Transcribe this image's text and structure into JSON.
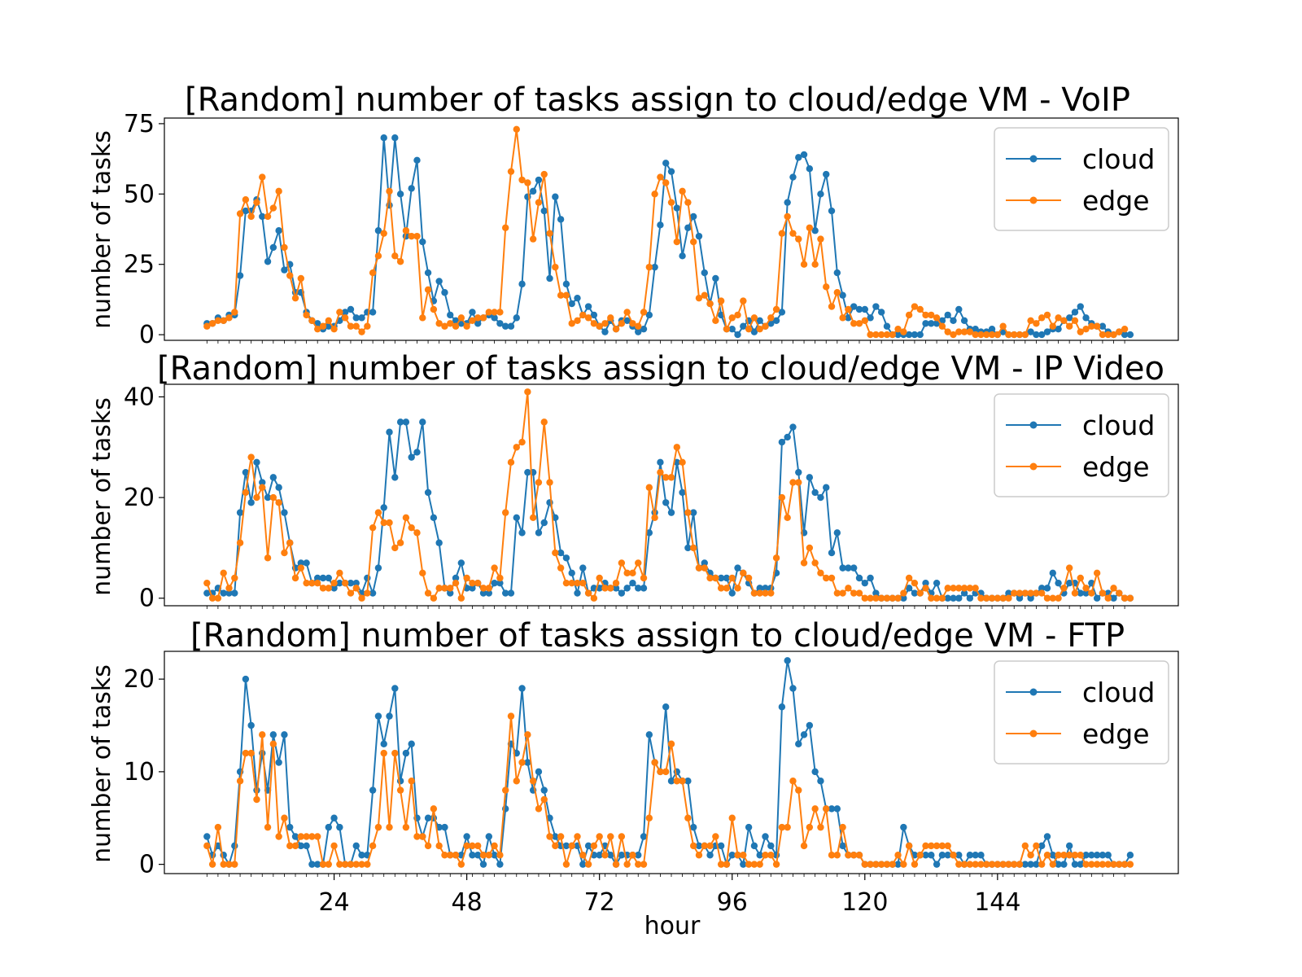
{
  "colors": {
    "cloud": "#1f77b4",
    "edge": "#ff7f0e",
    "axes": "#000000",
    "legend_border": "#cccccc"
  },
  "chart_data": [
    {
      "type": "line",
      "title": "[Random] number of tasks assign to cloud/edge VM - VoIP",
      "xlabel": "",
      "ylabel": "number of tasks",
      "ylim": [
        -2,
        77
      ],
      "yticks": [
        0,
        25,
        50,
        75
      ],
      "legend": {
        "placement": "top-right",
        "entries": [
          "cloud",
          "edge"
        ]
      },
      "grid": false,
      "x": "hours 1..168",
      "series": [
        {
          "name": "cloud",
          "values": [
            4,
            4,
            6,
            5,
            7,
            7,
            21,
            44,
            44,
            48,
            42,
            26,
            31,
            37,
            23,
            25,
            15,
            15,
            8,
            5,
            4,
            2,
            3,
            3,
            5,
            8,
            9,
            6,
            6,
            8,
            8,
            37,
            70,
            46,
            70,
            50,
            35,
            52,
            62,
            33,
            22,
            12,
            19,
            15,
            7,
            5,
            4,
            4,
            8,
            4,
            6,
            7,
            6,
            4,
            3,
            3,
            6,
            18,
            49,
            51,
            55,
            44,
            20,
            49,
            41,
            18,
            11,
            13,
            7,
            10,
            7,
            3,
            1,
            5,
            2,
            5,
            5,
            3,
            1,
            2,
            7,
            24,
            39,
            61,
            58,
            45,
            28,
            38,
            42,
            35,
            22,
            11,
            20,
            7,
            2,
            2,
            0,
            3,
            5,
            1,
            5,
            3,
            4,
            5,
            8,
            47,
            56,
            63,
            64,
            59,
            37,
            50,
            57,
            44,
            22,
            14,
            6,
            10,
            9,
            9,
            6,
            10,
            8,
            3,
            0,
            0,
            0,
            0,
            0,
            0,
            4,
            4,
            4,
            5,
            7,
            5,
            9,
            5,
            2,
            2,
            1,
            1,
            2,
            0,
            1,
            0,
            0,
            0,
            0,
            1,
            0,
            0,
            1,
            2,
            2,
            5,
            6,
            8,
            10,
            6,
            4,
            3,
            3,
            1,
            0,
            1,
            0,
            0
          ]
        },
        {
          "name": "edge",
          "values": [
            3,
            4,
            5,
            5,
            6,
            8,
            43,
            48,
            42,
            47,
            56,
            42,
            45,
            51,
            31,
            21,
            13,
            20,
            7,
            5,
            2,
            3,
            5,
            2,
            8,
            6,
            3,
            3,
            1,
            3,
            22,
            28,
            36,
            51,
            28,
            26,
            37,
            35,
            35,
            6,
            16,
            9,
            4,
            3,
            4,
            3,
            6,
            3,
            5,
            6,
            6,
            8,
            8,
            8,
            38,
            58,
            73,
            55,
            54,
            34,
            47,
            57,
            36,
            24,
            14,
            14,
            4,
            5,
            7,
            6,
            4,
            3,
            4,
            6,
            2,
            4,
            8,
            4,
            3,
            8,
            24,
            50,
            56,
            54,
            47,
            33,
            51,
            47,
            33,
            13,
            14,
            11,
            5,
            12,
            2,
            6,
            7,
            12,
            2,
            6,
            2,
            3,
            6,
            9,
            36,
            42,
            36,
            34,
            25,
            38,
            25,
            34,
            17,
            10,
            15,
            6,
            9,
            4,
            4,
            5,
            0,
            0,
            0,
            0,
            0,
            2,
            1,
            7,
            10,
            9,
            7,
            7,
            6,
            3,
            1,
            0,
            1,
            1,
            1,
            0,
            0,
            0,
            0,
            0,
            3,
            0,
            0,
            0,
            0,
            5,
            4,
            6,
            7,
            3,
            6,
            5,
            3,
            5,
            1,
            2,
            3,
            3,
            0,
            0,
            0,
            1,
            2
          ]
        }
      ]
    },
    {
      "type": "line",
      "title": "[Random] number of tasks assign to cloud/edge VM - IP Video",
      "xlabel": "",
      "ylabel": "number of tasks",
      "ylim": [
        -1.5,
        42.5
      ],
      "yticks": [
        0,
        20,
        40
      ],
      "legend": {
        "placement": "top-right",
        "entries": [
          "cloud",
          "edge"
        ]
      },
      "grid": false,
      "x": "hours 1..168",
      "series": [
        {
          "name": "cloud",
          "values": [
            1,
            1,
            2,
            1,
            1,
            1,
            17,
            25,
            19,
            27,
            23,
            20,
            24,
            22,
            17,
            11,
            6,
            7,
            7,
            3,
            4,
            4,
            4,
            2,
            3,
            3,
            3,
            3,
            1,
            4,
            1,
            6,
            18,
            33,
            24,
            35,
            35,
            28,
            29,
            35,
            21,
            16,
            11,
            2,
            1,
            4,
            7,
            2,
            2,
            3,
            1,
            1,
            3,
            3,
            1,
            1,
            16,
            13,
            25,
            25,
            13,
            15,
            19,
            16,
            9,
            8,
            5,
            1,
            6,
            1,
            2,
            2,
            3,
            2,
            2,
            1,
            2,
            3,
            2,
            2,
            13,
            17,
            27,
            19,
            17,
            27,
            21,
            10,
            17,
            6,
            7,
            5,
            4,
            4,
            4,
            1,
            6,
            5,
            3,
            1,
            2,
            2,
            2,
            5,
            31,
            32,
            34,
            25,
            13,
            24,
            21,
            20,
            22,
            9,
            13,
            6,
            6,
            6,
            4,
            3,
            4,
            1,
            0,
            0,
            0,
            0,
            0,
            2,
            1,
            1,
            3,
            1,
            3,
            0,
            0,
            0,
            0,
            1,
            0,
            1,
            1,
            0,
            0,
            0,
            0,
            1,
            1,
            0,
            1,
            0,
            1,
            2,
            2,
            5,
            3,
            1,
            3,
            3,
            1,
            1,
            3,
            0,
            1,
            1,
            0,
            1,
            0,
            0
          ]
        },
        {
          "name": "edge",
          "values": [
            3,
            0,
            0,
            5,
            2,
            4,
            11,
            21,
            28,
            20,
            22,
            8,
            20,
            19,
            9,
            11,
            4,
            6,
            3,
            3,
            3,
            2,
            2,
            3,
            5,
            3,
            1,
            2,
            0,
            1,
            14,
            17,
            15,
            15,
            10,
            11,
            16,
            14,
            13,
            5,
            1,
            0,
            2,
            2,
            2,
            3,
            0,
            4,
            3,
            3,
            2,
            2,
            6,
            4,
            17,
            27,
            30,
            31,
            41,
            16,
            23,
            35,
            23,
            9,
            6,
            3,
            3,
            3,
            3,
            1,
            0,
            4,
            2,
            2,
            3,
            7,
            5,
            5,
            7,
            4,
            22,
            16,
            25,
            24,
            24,
            30,
            27,
            17,
            10,
            6,
            6,
            4,
            4,
            2,
            2,
            4,
            2,
            5,
            4,
            1,
            1,
            1,
            1,
            8,
            20,
            16,
            23,
            23,
            7,
            10,
            7,
            5,
            4,
            4,
            1,
            1,
            2,
            1,
            1,
            0,
            0,
            0,
            0,
            0,
            0,
            0,
            1,
            4,
            3,
            1,
            2,
            0,
            0,
            0,
            2,
            2,
            2,
            2,
            2,
            2,
            0,
            0,
            0,
            0,
            0,
            0,
            1,
            1,
            1,
            1,
            1,
            1,
            0,
            0,
            0,
            2,
            6,
            1,
            4,
            2,
            1,
            5,
            1,
            0,
            2,
            1,
            0,
            0
          ]
        }
      ]
    },
    {
      "type": "line",
      "title": "[Random] number of tasks assign to cloud/edge VM - FTP",
      "xlabel": "hour",
      "ylabel": "number of tasks",
      "ylim": [
        -1,
        23
      ],
      "yticks": [
        0,
        10,
        20
      ],
      "xticks": [
        24,
        48,
        72,
        96,
        120,
        144
      ],
      "legend": {
        "placement": "top-right",
        "entries": [
          "cloud",
          "edge"
        ]
      },
      "grid": false,
      "x": "hours 1..168",
      "series": [
        {
          "name": "cloud",
          "values": [
            3,
            1,
            2,
            1,
            0,
            2,
            10,
            20,
            15,
            8,
            12,
            8,
            14,
            11,
            14,
            4,
            3,
            2,
            2,
            0,
            0,
            0,
            4,
            5,
            4,
            0,
            0,
            2,
            1,
            1,
            8,
            16,
            13,
            16,
            19,
            9,
            12,
            13,
            5,
            3,
            5,
            5,
            4,
            4,
            1,
            1,
            1,
            3,
            1,
            1,
            0,
            3,
            1,
            0,
            6,
            13,
            12,
            19,
            11,
            8,
            10,
            8,
            5,
            3,
            2,
            2,
            2,
            2,
            0,
            2,
            1,
            1,
            2,
            1,
            0,
            1,
            1,
            1,
            1,
            3,
            14,
            11,
            10,
            17,
            9,
            10,
            9,
            9,
            4,
            2,
            2,
            1,
            2,
            2,
            0,
            1,
            1,
            0,
            4,
            2,
            1,
            3,
            2,
            1,
            17,
            22,
            19,
            13,
            14,
            15,
            10,
            9,
            6,
            6,
            6,
            2,
            1,
            1,
            1,
            0,
            0,
            0,
            0,
            0,
            0,
            0,
            4,
            2,
            1,
            1,
            1,
            1,
            0,
            1,
            1,
            1,
            1,
            0,
            1,
            1,
            1,
            0,
            0,
            0,
            0,
            0,
            0,
            0,
            0,
            0,
            0,
            2,
            3,
            1,
            0,
            0,
            2,
            0,
            0,
            1,
            1,
            1,
            1,
            1,
            0,
            0,
            0,
            1
          ]
        },
        {
          "name": "edge",
          "values": [
            2,
            0,
            4,
            0,
            0,
            0,
            9,
            12,
            12,
            7,
            14,
            4,
            13,
            3,
            5,
            2,
            2,
            3,
            3,
            3,
            3,
            0,
            0,
            2,
            0,
            0,
            0,
            0,
            0,
            0,
            2,
            4,
            12,
            4,
            12,
            8,
            4,
            9,
            3,
            3,
            2,
            6,
            2,
            1,
            1,
            1,
            0,
            2,
            2,
            2,
            1,
            1,
            2,
            1,
            8,
            16,
            9,
            11,
            14,
            9,
            6,
            7,
            3,
            2,
            3,
            0,
            2,
            3,
            1,
            0,
            2,
            3,
            1,
            3,
            0,
            3,
            0,
            1,
            0,
            0,
            5,
            11,
            10,
            10,
            13,
            9,
            9,
            5,
            2,
            1,
            2,
            2,
            3,
            0,
            0,
            5,
            1,
            1,
            0,
            0,
            0,
            1,
            1,
            0,
            4,
            4,
            9,
            8,
            2,
            4,
            6,
            4,
            6,
            1,
            1,
            4,
            1,
            1,
            1,
            0,
            0,
            0,
            0,
            0,
            0,
            1,
            0,
            2,
            0,
            1,
            2,
            2,
            2,
            2,
            2,
            1,
            0,
            0,
            0,
            0,
            0,
            0,
            0,
            0,
            0,
            0,
            0,
            0,
            2,
            1,
            2,
            0,
            1,
            0,
            1,
            1,
            1,
            1,
            1,
            0,
            0,
            0,
            0,
            0,
            0,
            0,
            0,
            0
          ]
        }
      ]
    }
  ]
}
